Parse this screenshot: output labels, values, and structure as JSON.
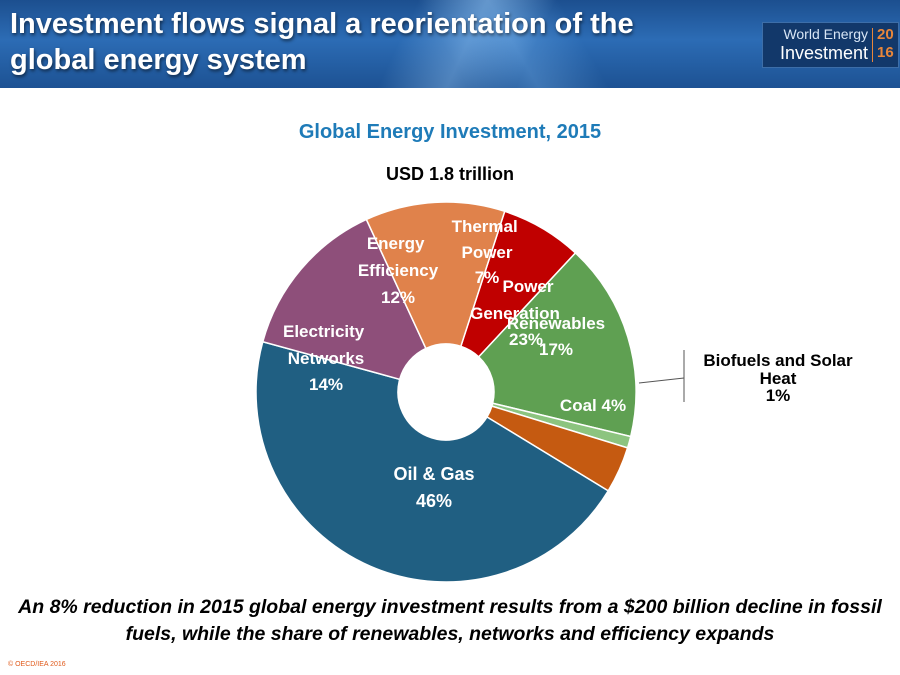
{
  "slide": {
    "title": "Investment flows signal a reorientation of the global energy system",
    "logo_line1": "World Energy",
    "logo_line2": "Investment",
    "logo_year1": "20",
    "logo_year2": "16",
    "caption": "An 8% reduction in 2015 global energy investment results from a $200 billion decline in fossil fuels, while the share of renewables, networks and efficiency expands",
    "footer": "© OECD/IEA 2016"
  },
  "chart_data": {
    "type": "pie",
    "title": "Global Energy Investment, 2015",
    "subtitle": "USD 1.8 trillion",
    "donut": true,
    "slices": [
      {
        "label": "Thermal Power",
        "value": 7,
        "value_label": "7%",
        "color": "#c00000"
      },
      {
        "label": "Renewables",
        "value": 17,
        "value_label": "17%",
        "color": "#5fa052"
      },
      {
        "label": "Biofuels and Solar Heat",
        "value": 1,
        "value_label": "1%",
        "color": "#8cc47f"
      },
      {
        "label": "Coal",
        "value": 4,
        "value_label": "Coal 4%",
        "color": "#c55a11"
      },
      {
        "label": "Oil & Gas",
        "value": 46,
        "value_label": "46%",
        "color": "#205f82"
      },
      {
        "label": "Electricity Networks",
        "value": 14,
        "value_label": "14%",
        "color": "#8e4f7a"
      },
      {
        "label": "Energy Efficiency",
        "value": 12,
        "value_label": "12%",
        "color": "#e0824b"
      }
    ],
    "group_label": {
      "line1": "Power",
      "line2": "Generation",
      "value_label": "23%"
    },
    "callout": {
      "line1": "Biofuels and Solar",
      "line2": "Heat",
      "line3": "1%"
    }
  }
}
